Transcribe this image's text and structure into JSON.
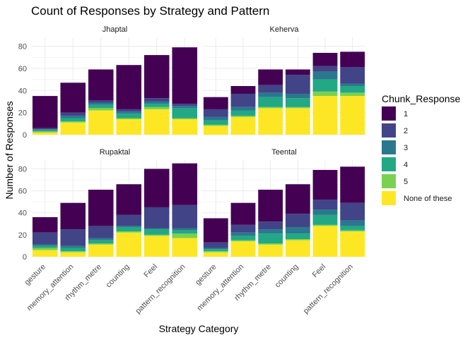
{
  "chart_data": {
    "type": "bar",
    "stacked": true,
    "title": "Count of Responses by Strategy and Pattern",
    "xlabel": "Strategy Category",
    "ylabel": "Number of Responses",
    "ylim": [
      0,
      88
    ],
    "yticks": [
      0,
      20,
      40,
      60,
      80
    ],
    "grid": true,
    "legend": {
      "title": "Chunk_Response",
      "position": "right",
      "entries": [
        "1",
        "2",
        "3",
        "4",
        "5",
        "None of these"
      ]
    },
    "colors": {
      "1": "#440154",
      "2": "#414487",
      "3": "#2a788e",
      "4": "#22a884",
      "5": "#7ad151",
      "None of these": "#fde725"
    },
    "categories": [
      "gesture",
      "memory_attention",
      "rhythm_metre",
      "counting",
      "Feel",
      "pattern_recognition"
    ],
    "panels": [
      {
        "name": "Jhaptal",
        "segments": {
          "None of these": [
            2,
            11,
            22,
            14,
            23,
            14
          ],
          "5": [
            1,
            1,
            2,
            1,
            2,
            1
          ],
          "4": [
            1,
            3,
            3,
            4,
            3,
            9
          ],
          "3": [
            1,
            2,
            2,
            2,
            2,
            2
          ],
          "2": [
            1,
            3,
            2,
            2,
            3,
            2
          ],
          "1": [
            29,
            27,
            28,
            40,
            39,
            51
          ]
        }
      },
      {
        "name": "Keherva",
        "segments": {
          "None of these": [
            8,
            16,
            24,
            24,
            35,
            35
          ],
          "5": [
            1,
            1,
            1,
            1,
            4,
            3
          ],
          "4": [
            4,
            5,
            9,
            8,
            11,
            6
          ],
          "3": [
            3,
            3,
            4,
            4,
            7,
            2
          ],
          "2": [
            7,
            12,
            7,
            17,
            5,
            15
          ],
          "1": [
            11,
            7,
            14,
            5,
            12,
            14
          ]
        }
      },
      {
        "name": "Rupaktal",
        "segments": {
          "None of these": [
            6,
            4,
            11,
            22,
            19,
            17
          ],
          "5": [
            2,
            1,
            1,
            1,
            1,
            4
          ],
          "4": [
            2,
            3,
            3,
            4,
            5,
            3
          ],
          "3": [
            1,
            2,
            2,
            1,
            1,
            2
          ],
          "2": [
            11,
            15,
            11,
            10,
            19,
            21
          ],
          "1": [
            14,
            24,
            33,
            28,
            35,
            38
          ]
        }
      },
      {
        "name": "Teental",
        "segments": {
          "None of these": [
            4,
            14,
            11,
            15,
            28,
            23
          ],
          "5": [
            1,
            1,
            1,
            1,
            1,
            1
          ],
          "4": [
            2,
            4,
            9,
            5,
            9,
            4
          ],
          "3": [
            1,
            3,
            4,
            6,
            5,
            5
          ],
          "2": [
            5,
            7,
            7,
            12,
            9,
            16
          ],
          "1": [
            22,
            20,
            29,
            27,
            27,
            33
          ]
        }
      }
    ]
  }
}
